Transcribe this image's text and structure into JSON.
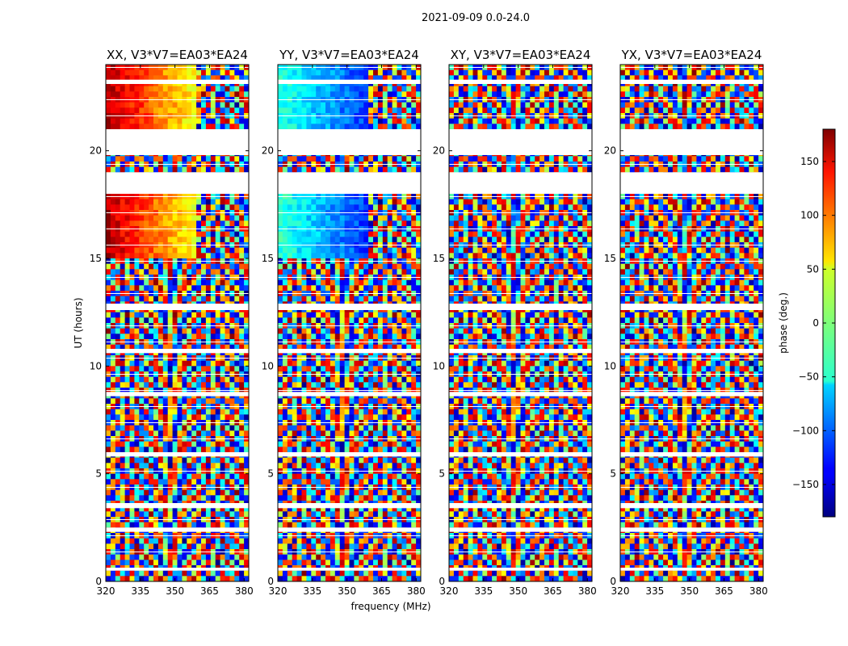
{
  "chart_data": {
    "type": "heatmap",
    "suptitle": "2021-09-09 0.0-24.0",
    "xlabel": "frequency (MHz)",
    "ylabel": "UT (hours)",
    "xlim": [
      320,
      382
    ],
    "ylim": [
      0,
      24
    ],
    "xticks": [
      320,
      335,
      350,
      365,
      380
    ],
    "yticks": [
      0,
      5,
      10,
      15,
      20
    ],
    "colormap": "jet",
    "colorbar": {
      "label": "phase (deg.)",
      "range": [
        -180,
        180
      ],
      "ticks": [
        -150,
        -100,
        -50,
        0,
        50,
        100,
        150
      ],
      "tick_labels": [
        "−150",
        "−100",
        "−50",
        "0",
        "50",
        "100",
        "150"
      ]
    },
    "panels": [
      {
        "title": "XX, V3*V7=EA03*EA24",
        "pol": "XX",
        "coherent_phase": true
      },
      {
        "title": "YY, V3*V7=EA03*EA24",
        "pol": "YY",
        "coherent_phase": true
      },
      {
        "title": "XY, V3*V7=EA03*EA24",
        "pol": "XY",
        "coherent_phase": false
      },
      {
        "title": "YX, V3*V7=EA03*EA24",
        "pol": "YX",
        "coherent_phase": false
      }
    ],
    "flagged_time_ranges_hours": [
      [
        19.8,
        21.0
      ],
      [
        18.0,
        19.0
      ],
      [
        12.6,
        12.9
      ],
      [
        10.6,
        10.8
      ],
      [
        8.6,
        8.8
      ],
      [
        5.8,
        6.0
      ],
      [
        3.4,
        3.6
      ],
      [
        2.3,
        2.5
      ],
      [
        0.5,
        0.6
      ],
      [
        23.1,
        23.3
      ]
    ]
  }
}
